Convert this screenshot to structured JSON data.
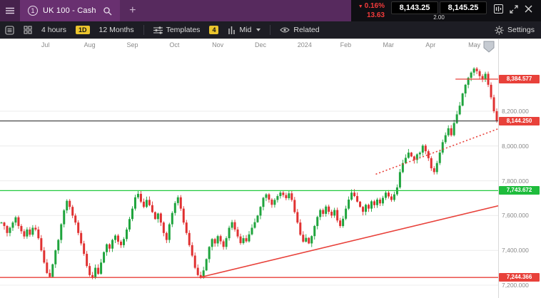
{
  "title_bar": {
    "tab_number": "1",
    "title": "UK 100 - Cash",
    "add_tab_label": "+",
    "change_direction": "▼",
    "change_pct": "0.16%",
    "change_value": "13.63",
    "sell_price": "8,143.25",
    "buy_price": "8,145.25",
    "spread": "2.00"
  },
  "toolbar": {
    "interval_label": "4 hours",
    "interval_badge": "1D",
    "range_label": "12 Months",
    "templates_label": "Templates",
    "templates_count": "4",
    "price_type_label": "Mid",
    "related_label": "Related",
    "settings_label": "Settings"
  },
  "chart_data": {
    "type": "candlestick",
    "x_labels": [
      "Jul",
      "Aug",
      "Sep",
      "Oct",
      "Nov",
      "Dec",
      "2024",
      "Feb",
      "Mar",
      "Apr",
      "May"
    ],
    "month_start_indices": [
      13,
      28,
      43,
      58,
      73,
      88,
      103,
      118,
      133,
      148,
      163
    ],
    "open_start": 7560,
    "closes": [
      7560,
      7540,
      7500,
      7530,
      7560,
      7590,
      7540,
      7510,
      7480,
      7520,
      7490,
      7530,
      7520,
      7470,
      7400,
      7330,
      7270,
      7248,
      7320,
      7400,
      7460,
      7550,
      7630,
      7685,
      7650,
      7600,
      7560,
      7500,
      7440,
      7380,
      7310,
      7258,
      7242,
      7300,
      7265,
      7330,
      7390,
      7435,
      7410,
      7460,
      7485,
      7450,
      7430,
      7465,
      7520,
      7580,
      7640,
      7705,
      7725,
      7680,
      7650,
      7690,
      7660,
      7620,
      7580,
      7612,
      7560,
      7500,
      7460,
      7550,
      7615,
      7672,
      7705,
      7640,
      7560,
      7500,
      7430,
      7370,
      7300,
      7258,
      7242,
      7285,
      7350,
      7420,
      7465,
      7440,
      7482,
      7452,
      7420,
      7470,
      7530,
      7562,
      7520,
      7480,
      7442,
      7470,
      7452,
      7492,
      7530,
      7562,
      7600,
      7650,
      7702,
      7722,
      7692,
      7662,
      7690,
      7712,
      7732,
      7718,
      7700,
      7728,
      7690,
      7620,
      7560,
      7490,
      7450,
      7472,
      7440,
      7482,
      7540,
      7592,
      7632,
      7610,
      7652,
      7622,
      7600,
      7632,
      7572,
      7540,
      7582,
      7640,
      7692,
      7732,
      7712,
      7680,
      7650,
      7622,
      7662,
      7640,
      7682,
      7660,
      7692,
      7670,
      7702,
      7732,
      7710,
      7690,
      7722,
      7762,
      7850,
      7902,
      7932,
      7962,
      7940,
      7920,
      7952,
      7962,
      8002,
      7970,
      7930,
      7872,
      7850,
      7902,
      7962,
      8022,
      8062,
      8102,
      8062,
      8132,
      8182,
      8232,
      8302,
      8352,
      8392,
      8422,
      8445,
      8430,
      8402,
      8382,
      8415,
      8352,
      8280,
      8200,
      8144.25
    ],
    "wick_base": 4,
    "wick_var": 18,
    "y_ticks": [
      {
        "price": 8200,
        "label": "8,200.000"
      },
      {
        "price": 8000,
        "label": "8,000.000"
      },
      {
        "price": 7800,
        "label": "7,800.000"
      },
      {
        "price": 7600,
        "label": "7,600.000"
      },
      {
        "price": 7400,
        "label": "7,400.000"
      },
      {
        "price": 7200,
        "label": "7,200.000"
      }
    ],
    "hlines": [
      {
        "name": "resistance-level-line",
        "price": 8384.577,
        "label": "8,384.577",
        "line_color": "#e8413a",
        "label_bg": "#e8413a",
        "start_index": 160
      },
      {
        "name": "current-price-line",
        "price": 8144.25,
        "label": "8,144.250",
        "line_color": "#4a4a4a",
        "label_bg": "#e8413a",
        "start_index": 0
      },
      {
        "name": "support-level-line-green",
        "price": 7743.672,
        "label": "7,743.672",
        "line_color": "#22c93e",
        "label_bg": "#1ebc3c",
        "start_index": 0
      },
      {
        "name": "support-level-line-red",
        "price": 7244.366,
        "label": "7,244.366",
        "line_color": "#e8413a",
        "label_bg": "#e8413a",
        "start_index": 0
      }
    ],
    "trendlines": [
      {
        "name": "support-trendline",
        "style": "solid",
        "color": "#e8413a",
        "from": {
          "i": 70,
          "p": 7244
        },
        "to": {
          "i": 176,
          "p": 7660
        }
      },
      {
        "name": "projection-trendline",
        "style": "dotted",
        "color": "#e8413a",
        "from": {
          "i": 132,
          "p": 7838
        },
        "to": {
          "i": 176,
          "p": 8105
        }
      }
    ],
    "colors": {
      "up": "#1fa43d",
      "down": "#e03131",
      "grid": "#ececec",
      "month_text": "#8a8a8a"
    }
  }
}
